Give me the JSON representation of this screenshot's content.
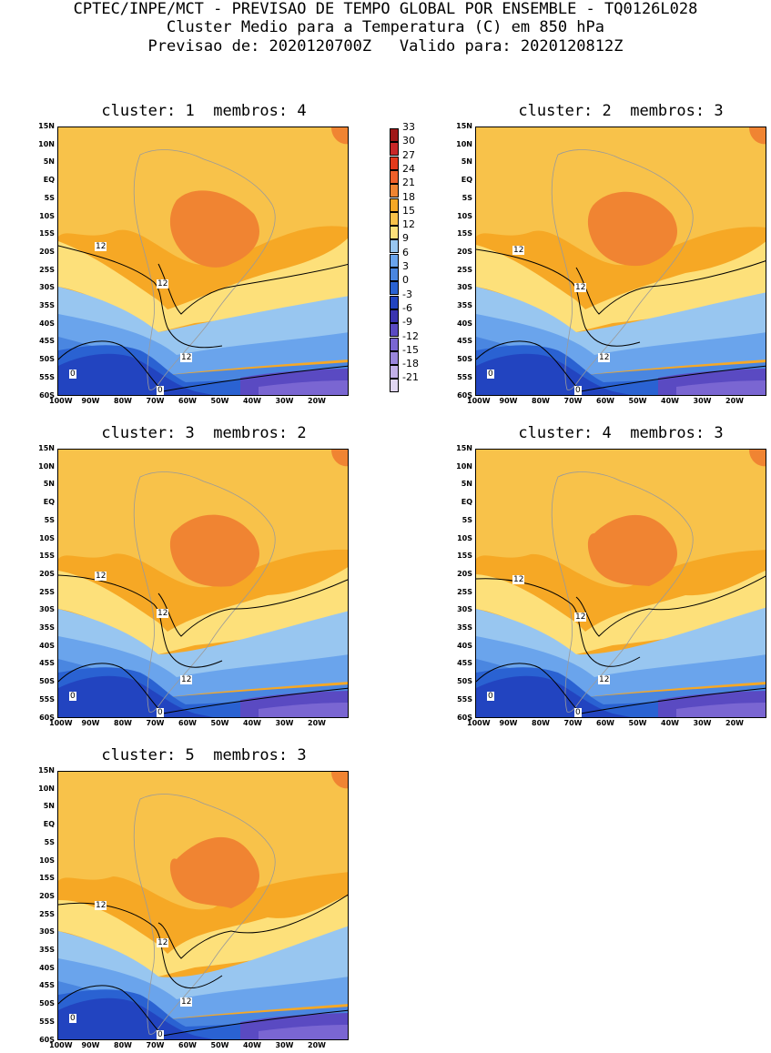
{
  "header": {
    "line1": "CPTEC/INPE/MCT - PREVISAO DE TEMPO GLOBAL POR ENSEMBLE - TQ0126L028",
    "line2": "Cluster Medio para a Temperatura (C) em 850 hPa",
    "line3": "Previsao de: 2020120700Z   Valido para: 2020120812Z"
  },
  "panels": [
    {
      "title": "cluster: 1  membros: 4"
    },
    {
      "title": "cluster: 2  membros: 3"
    },
    {
      "title": "cluster: 3  membros: 2"
    },
    {
      "title": "cluster: 4  membros: 3"
    },
    {
      "title": "cluster: 5  membros: 3"
    }
  ],
  "lat_labels": [
    "15N",
    "10N",
    "5N",
    "EQ",
    "5S",
    "10S",
    "15S",
    "20S",
    "25S",
    "30S",
    "35S",
    "40S",
    "45S",
    "50S",
    "55S",
    "60S"
  ],
  "lon_labels": [
    "100W",
    "90W",
    "80W",
    "70W",
    "60W",
    "50W",
    "40W",
    "30W",
    "20W"
  ],
  "contour_labels": {
    "c12": "12",
    "c0": "0"
  },
  "colorbar": {
    "labels": [
      "33",
      "30",
      "27",
      "24",
      "21",
      "18",
      "15",
      "12",
      "9",
      "6",
      "3",
      "0",
      "-3",
      "-6",
      "-9",
      "-12",
      "-15",
      "-18",
      "-21"
    ],
    "colors": [
      "#a01818",
      "#c82828",
      "#e43a1c",
      "#f0602a",
      "#f08432",
      "#f6a825",
      "#f8c24a",
      "#fde07a",
      "#98c6f0",
      "#6aa4ec",
      "#4a86e0",
      "#2a62d2",
      "#2244c0",
      "#3a34b0",
      "#5a4ac2",
      "#7a66d2",
      "#9a86dc",
      "#c2b0e8",
      "#e0d6f2"
    ]
  }
}
